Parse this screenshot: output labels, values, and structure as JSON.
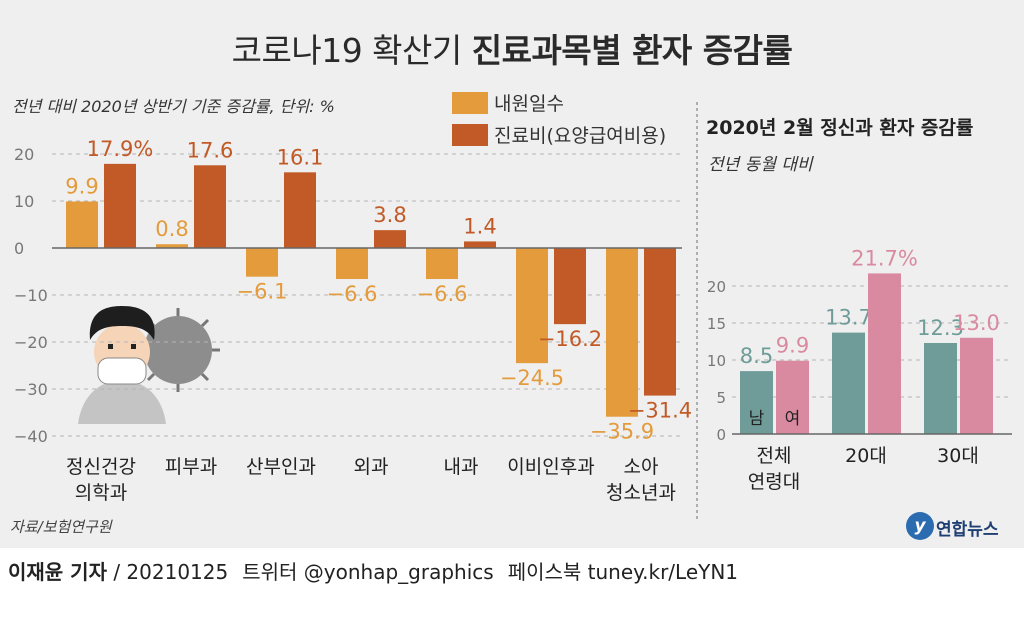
{
  "header": {
    "title_regular": "코로나19 확산기",
    "title_bold": "진료과목별 환자 증감률"
  },
  "footer": {
    "reporter": "이재윤 기자",
    "credit": "/ 20210125",
    "twitter": "트위터 @yonhap_graphics",
    "facebook": "페이스북 tuney.kr/LeYN1"
  },
  "logo": {
    "mark": "y",
    "text": "연합뉴스"
  },
  "colors": {
    "orange": "#e39b3c",
    "rust": "#c15a27",
    "teal": "#6f9c99",
    "pink": "#d98aa1",
    "axis_text": "#777777",
    "grid": "#b5b5b5"
  },
  "chart_data": [
    {
      "type": "bar",
      "subtitle": "전년 대비 2020년 상반기 기준 증감률, 단위: %",
      "legend": [
        "내원일수",
        "진료비(요양급여비용)"
      ],
      "legend_placement": "top-right",
      "categories": [
        [
          "정신건강",
          "의학과"
        ],
        [
          "피부과"
        ],
        [
          "산부인과"
        ],
        [
          "외과"
        ],
        [
          "내과"
        ],
        [
          "이비인후과"
        ],
        [
          "소아",
          "청소년과"
        ]
      ],
      "series": [
        {
          "name": "내원일수",
          "values": [
            9.9,
            0.8,
            -6.1,
            -6.6,
            -6.6,
            -24.5,
            -35.9
          ],
          "labels": [
            "9.9",
            "0.8",
            "−6.1",
            "−6.6",
            "−6.6",
            "−24.5",
            "−35.9"
          ]
        },
        {
          "name": "진료비(요양급여비용)",
          "values": [
            17.9,
            17.6,
            16.1,
            3.8,
            1.4,
            -16.2,
            -31.4
          ],
          "labels": [
            "17.9%",
            "17.6",
            "16.1",
            "3.8",
            "1.4",
            "−16.2",
            "−31.4"
          ]
        }
      ],
      "yticks": [
        20,
        10,
        0,
        -10,
        -20,
        -30,
        -40
      ],
      "ytick_labels": [
        "20",
        "10",
        "0",
        "−10",
        "−20",
        "−30",
        "−40"
      ],
      "ylim": [
        -40,
        20
      ],
      "grid": true,
      "source": "자료/보험연구원"
    },
    {
      "type": "bar",
      "title": "2020년 2월 정신과 환자 증감률",
      "subtitle": "전년 동월 대비",
      "categories": [
        [
          "전체",
          "연령대"
        ],
        [
          "20대"
        ],
        [
          "30대"
        ]
      ],
      "series": [
        {
          "name": "남",
          "values": [
            8.5,
            13.7,
            12.3
          ],
          "labels": [
            "8.5",
            "13.7",
            "12.3"
          ]
        },
        {
          "name": "여",
          "values": [
            9.9,
            21.7,
            13.0
          ],
          "labels": [
            "9.9",
            "21.7%",
            "13.0"
          ]
        }
      ],
      "yticks": [
        20,
        15,
        10,
        5,
        0
      ],
      "ytick_labels": [
        "20",
        "15",
        "10",
        "5",
        "0"
      ],
      "ylim": [
        0,
        24
      ],
      "grid": true
    }
  ]
}
